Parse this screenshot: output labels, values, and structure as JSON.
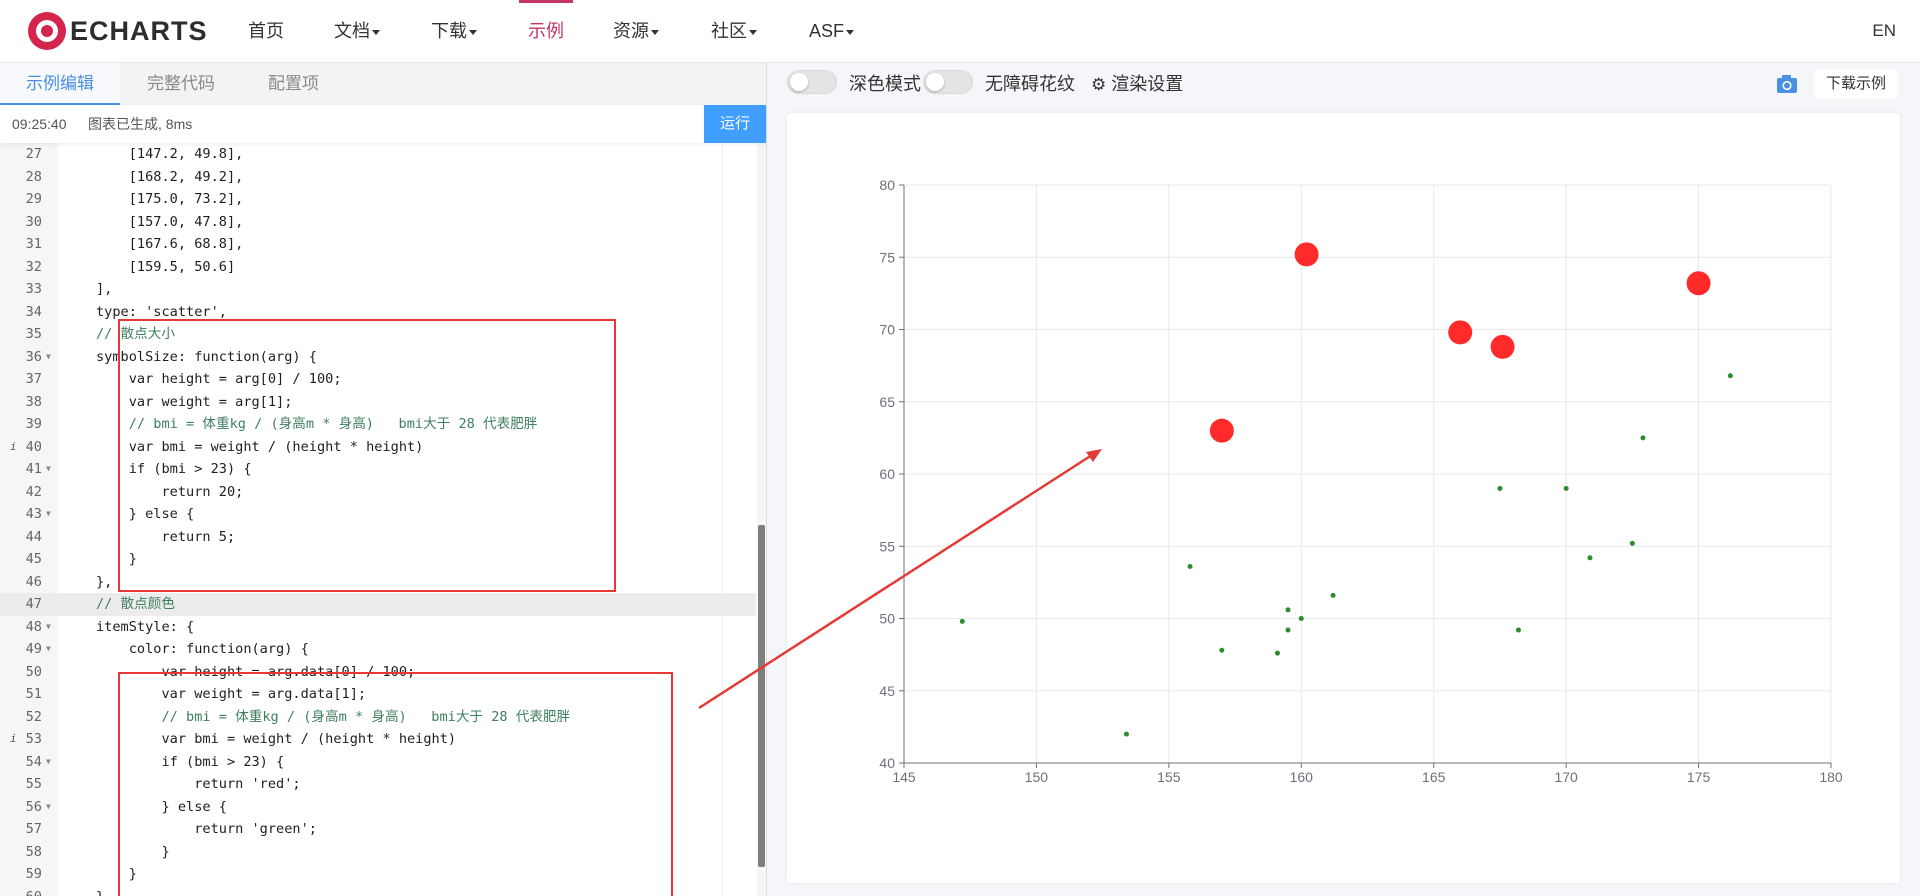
{
  "brand": {
    "logo_text": "ECHARTS"
  },
  "nav": {
    "items": [
      {
        "label": "首页",
        "has_caret": false,
        "active": false
      },
      {
        "label": "文档",
        "has_caret": true,
        "active": false
      },
      {
        "label": "下载",
        "has_caret": true,
        "active": false
      },
      {
        "label": "示例",
        "has_caret": false,
        "active": true
      },
      {
        "label": "资源",
        "has_caret": true,
        "active": false
      },
      {
        "label": "社区",
        "has_caret": true,
        "active": false
      },
      {
        "label": "ASF",
        "has_caret": true,
        "active": false
      }
    ],
    "lang": "EN"
  },
  "editor": {
    "tabs": [
      "示例编辑",
      "完整代码",
      "配置项"
    ],
    "status_time": "09:25:40",
    "status_message": "图表已生成, 8ms",
    "run_label": "运行",
    "lines": [
      {
        "n": "27",
        "t": "    [147.2, 49.8],"
      },
      {
        "n": "28",
        "t": "    [168.2, 49.2],"
      },
      {
        "n": "29",
        "t": "    [175.0, 73.2],"
      },
      {
        "n": "30",
        "t": "    [157.0, 47.8],"
      },
      {
        "n": "31",
        "t": "    [167.6, 68.8],"
      },
      {
        "n": "32",
        "t": "    [159.5, 50.6]"
      },
      {
        "n": "33",
        "t": "],"
      },
      {
        "n": "34",
        "t": "type: 'scatter',"
      },
      {
        "n": "35",
        "t": "// 散点大小"
      },
      {
        "n": "36",
        "t": "symbolSize: function(arg) {",
        "fold": true
      },
      {
        "n": "37",
        "t": "    var height = arg[0] / 100;"
      },
      {
        "n": "38",
        "t": "    var weight = arg[1];"
      },
      {
        "n": "39",
        "t": "    // bmi = 体重kg / (身高m * 身高)   bmi大于 28 代表肥胖"
      },
      {
        "n": "40",
        "t": "    var bmi = weight / (height * height)",
        "info": true
      },
      {
        "n": "41",
        "t": "    if (bmi > 23) {",
        "fold": true
      },
      {
        "n": "42",
        "t": "        return 20;"
      },
      {
        "n": "43",
        "t": "    } else {",
        "fold": true
      },
      {
        "n": "44",
        "t": "        return 5;"
      },
      {
        "n": "45",
        "t": "    }"
      },
      {
        "n": "46",
        "t": "},"
      },
      {
        "n": "47",
        "t": "// 散点颜色",
        "current": true
      },
      {
        "n": "48",
        "t": "itemStyle: {",
        "fold": true
      },
      {
        "n": "49",
        "t": "    color: function(arg) {",
        "fold": true
      },
      {
        "n": "50",
        "t": "        var height = arg.data[0] / 100;"
      },
      {
        "n": "51",
        "t": "        var weight = arg.data[1];"
      },
      {
        "n": "52",
        "t": "        // bmi = 体重kg / (身高m * 身高)   bmi大于 28 代表肥胖"
      },
      {
        "n": "53",
        "t": "        var bmi = weight / (height * height)",
        "info": true
      },
      {
        "n": "54",
        "t": "        if (bmi > 23) {",
        "fold": true
      },
      {
        "n": "55",
        "t": "            return 'red';"
      },
      {
        "n": "56",
        "t": "        } else {",
        "fold": true
      },
      {
        "n": "57",
        "t": "            return 'green';"
      },
      {
        "n": "58",
        "t": "        }"
      },
      {
        "n": "59",
        "t": "    }"
      },
      {
        "n": "60",
        "t": "}"
      }
    ]
  },
  "preview": {
    "dark_mode_label": "深色模式",
    "aria_label": "无障碍花纹",
    "render_settings_label": "渲染设置",
    "download_label": "下载示例"
  },
  "colors": {
    "accent": "#c23564",
    "run_button": "#409eff",
    "point_high_bmi": "#ff2a2a",
    "point_normal": "#2e8b2e",
    "annotation": "#e53935"
  },
  "chart_data": {
    "type": "scatter",
    "xlim": [
      145,
      180
    ],
    "ylim": [
      40,
      80
    ],
    "x_ticks": [
      "145",
      "150",
      "155",
      "160",
      "165",
      "170",
      "175",
      "180"
    ],
    "y_ticks": [
      "40",
      "45",
      "50",
      "55",
      "60",
      "65",
      "70",
      "75",
      "80"
    ],
    "grid": true,
    "series": [
      {
        "points": [
          {
            "x": 157.0,
            "y": 63.0,
            "size": 20,
            "color": "red"
          },
          {
            "x": 160.2,
            "y": 75.2,
            "size": 20,
            "color": "red"
          },
          {
            "x": 166.0,
            "y": 69.8,
            "size": 20,
            "color": "red"
          },
          {
            "x": 167.6,
            "y": 68.8,
            "size": 20,
            "color": "red"
          },
          {
            "x": 175.0,
            "y": 73.2,
            "size": 20,
            "color": "red"
          },
          {
            "x": 147.2,
            "y": 49.8,
            "size": 5,
            "color": "green"
          },
          {
            "x": 153.4,
            "y": 42.0,
            "size": 5,
            "color": "green"
          },
          {
            "x": 155.8,
            "y": 53.6,
            "size": 5,
            "color": "green"
          },
          {
            "x": 157.0,
            "y": 47.8,
            "size": 5,
            "color": "green"
          },
          {
            "x": 159.1,
            "y": 47.6,
            "size": 5,
            "color": "green"
          },
          {
            "x": 159.5,
            "y": 50.6,
            "size": 5,
            "color": "green"
          },
          {
            "x": 159.5,
            "y": 49.2,
            "size": 5,
            "color": "green"
          },
          {
            "x": 160.0,
            "y": 50.0,
            "size": 5,
            "color": "green"
          },
          {
            "x": 161.2,
            "y": 51.6,
            "size": 5,
            "color": "green"
          },
          {
            "x": 167.5,
            "y": 59.0,
            "size": 5,
            "color": "green"
          },
          {
            "x": 168.2,
            "y": 49.2,
            "size": 5,
            "color": "green"
          },
          {
            "x": 170.0,
            "y": 59.0,
            "size": 5,
            "color": "green"
          },
          {
            "x": 170.9,
            "y": 54.2,
            "size": 5,
            "color": "green"
          },
          {
            "x": 172.5,
            "y": 55.2,
            "size": 5,
            "color": "green"
          },
          {
            "x": 172.9,
            "y": 62.5,
            "size": 5,
            "color": "green"
          },
          {
            "x": 176.2,
            "y": 66.8,
            "size": 5,
            "color": "green"
          }
        ]
      }
    ]
  }
}
